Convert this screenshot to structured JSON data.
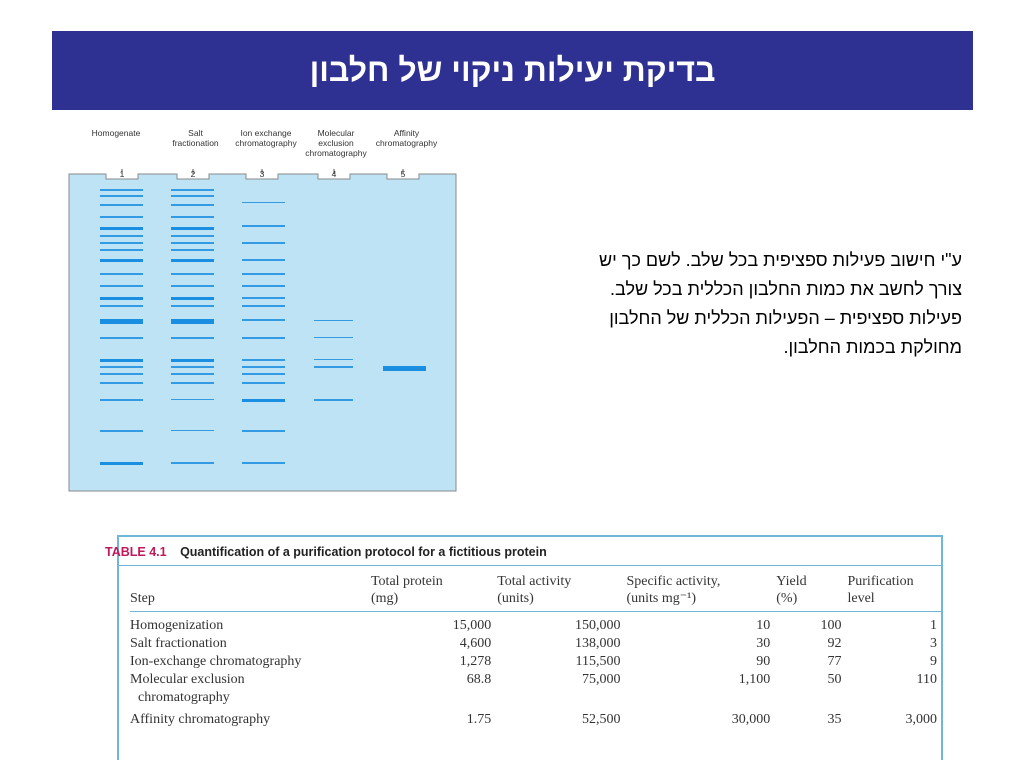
{
  "title": "בדיקת יעילות ניקוי של חלבון",
  "gel": {
    "lanes": [
      {
        "name": "Homogenate",
        "number": "1"
      },
      {
        "name": "Salt fractionation",
        "number": "2"
      },
      {
        "name": "Ion exchange chromatography",
        "number": "3"
      },
      {
        "name": "Molecular exclusion chromatography",
        "number": "4"
      },
      {
        "name": "Affinity chromatography",
        "number": "5"
      }
    ],
    "gel_color": "#bde3f5",
    "band_color": "#1a8ee0"
  },
  "body_text": {
    "lines": [
      "ע\"י חישוב פעילות ספציפית בכל שלב. לשם כך יש",
      "צורך לחשב את כמות החלבון הכללית בכל שלב.",
      "פעילות ספציפית – הפעילות הכללית של החלבון",
      "מחולקת בכמות החלבון."
    ]
  },
  "table": {
    "label": "TABLE 4.1",
    "title": "Quantification of a purification protocol for a fictitious protein",
    "headers": {
      "step": "Step",
      "protein": [
        "Total protein",
        "(mg)"
      ],
      "activity": [
        "Total activity",
        "(units)"
      ],
      "specific": [
        "Specific activity,",
        "(units mg⁻¹)"
      ],
      "yield": [
        "Yield",
        "(%)"
      ],
      "purification": [
        "Purification",
        "level"
      ]
    },
    "rows": [
      {
        "step": [
          "Homogenization"
        ],
        "protein": "15,000",
        "activity": "150,000",
        "specific": "10",
        "yield": "100",
        "purification": "1"
      },
      {
        "step": [
          "Salt fractionation"
        ],
        "protein": "4,600",
        "activity": "138,000",
        "specific": "30",
        "yield": "92",
        "purification": "3"
      },
      {
        "step": [
          "Ion-exchange chromatography"
        ],
        "protein": "1,278",
        "activity": "115,500",
        "specific": "90",
        "yield": "77",
        "purification": "9"
      },
      {
        "step": [
          "Molecular exclusion",
          "chromatography"
        ],
        "protein": "68.8",
        "activity": "75,000",
        "specific": "1,100",
        "yield": "50",
        "purification": "110"
      },
      {
        "step": [
          "Affinity chromatography"
        ],
        "protein": "1.75",
        "activity": "52,500",
        "specific": "30,000",
        "yield": "35",
        "purification": "3,000"
      }
    ],
    "label_color": "#c2185b",
    "rule_color": "#6fb6d9"
  }
}
